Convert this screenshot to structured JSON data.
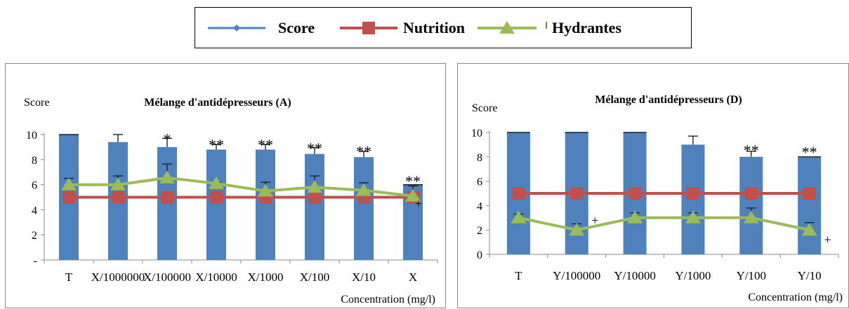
{
  "legend": {
    "entries": [
      {
        "name": "Score",
        "color": "#4F81BD",
        "marker": "diamond"
      },
      {
        "name": "Nutrition",
        "color": "#C0504D",
        "marker": "square"
      },
      {
        "name": "Hydrantes",
        "color": "#9BBB59",
        "marker": "triangle"
      }
    ]
  },
  "chart_data": [
    {
      "type": "bar",
      "title": "Mélange d'antidépresseurs (A)",
      "ylabel": "Score",
      "xlabel": "Concentration (mg/l)",
      "ylim": [
        0,
        10
      ],
      "yticks": [
        0,
        2,
        4,
        6,
        8,
        10
      ],
      "ytick_labels": [
        "-",
        "2",
        "4",
        "6",
        "8",
        "10"
      ],
      "categories": [
        "T",
        "X/1000000",
        "X/100000",
        "X/10000",
        "X/1000",
        "X/100",
        "X/10",
        "X"
      ],
      "series": [
        {
          "name": "Score",
          "kind": "bar",
          "color": "#4F81BD",
          "values": [
            10,
            9.4,
            9.0,
            8.8,
            8.8,
            8.45,
            8.2,
            6.0
          ],
          "errors": [
            0,
            0.6,
            0.7,
            0.4,
            0.4,
            0.5,
            0.45,
            0
          ]
        },
        {
          "name": "Nutrition",
          "kind": "line",
          "color": "#C0504D",
          "values": [
            5,
            5,
            5,
            5,
            5,
            5,
            5,
            5
          ]
        },
        {
          "name": "Hydrantes",
          "kind": "line",
          "color": "#9BBB59",
          "values": [
            6.0,
            6.0,
            6.55,
            6.1,
            5.5,
            5.8,
            5.55,
            5.1
          ],
          "errors": [
            0.5,
            0.7,
            1.1,
            0.1,
            0.7,
            0.9,
            0.6,
            0.8
          ]
        }
      ],
      "annotations": [
        {
          "category": "X/100000",
          "text": "*",
          "value": 9.9
        },
        {
          "category": "X/10000",
          "text": "**",
          "value": 9.45
        },
        {
          "category": "X/1000",
          "text": "**",
          "value": 9.45
        },
        {
          "category": "X/100",
          "text": "**",
          "value": 9.15
        },
        {
          "category": "X/10",
          "text": "**",
          "value": 8.9
        },
        {
          "category": "X",
          "text": "**",
          "value": 6.55
        },
        {
          "category": "X",
          "text": "+",
          "value": 4.5
        }
      ]
    },
    {
      "type": "bar",
      "title": "Mélange d'antidépresseurs (D)",
      "ylabel": "Score",
      "xlabel": "Concentration (mg/l)",
      "ylim": [
        0,
        10
      ],
      "yticks": [
        0,
        2,
        4,
        6,
        8,
        10
      ],
      "ytick_labels": [
        "0",
        "2",
        "4",
        "6",
        "8",
        "10"
      ],
      "categories": [
        "T",
        "Y/100000",
        "Y/10000",
        "Y/1000",
        "Y/100",
        "Y/10"
      ],
      "series": [
        {
          "name": "Score",
          "kind": "bar",
          "color": "#4F81BD",
          "values": [
            10,
            10,
            10,
            9.0,
            8.0,
            8.0
          ],
          "errors": [
            0,
            0,
            0,
            0.7,
            0.45,
            0
          ]
        },
        {
          "name": "Nutrition",
          "kind": "line",
          "color": "#C0504D",
          "values": [
            5,
            5,
            5,
            5,
            5,
            5
          ]
        },
        {
          "name": "Hydrantes",
          "kind": "line",
          "color": "#9BBB59",
          "values": [
            3.0,
            2.0,
            3.0,
            3.0,
            3.0,
            2.0
          ],
          "errors": [
            0.3,
            0.5,
            0.4,
            0.4,
            0.8,
            0.6
          ]
        }
      ],
      "annotations": [
        {
          "category": "Y/100000",
          "text": "+",
          "value": 2.8
        },
        {
          "category": "Y/100",
          "text": "**",
          "value": 8.8
        },
        {
          "category": "Y/10",
          "text": "**",
          "value": 8.65
        },
        {
          "category": "Y/10",
          "text": "+",
          "value": 1.2
        }
      ]
    }
  ]
}
